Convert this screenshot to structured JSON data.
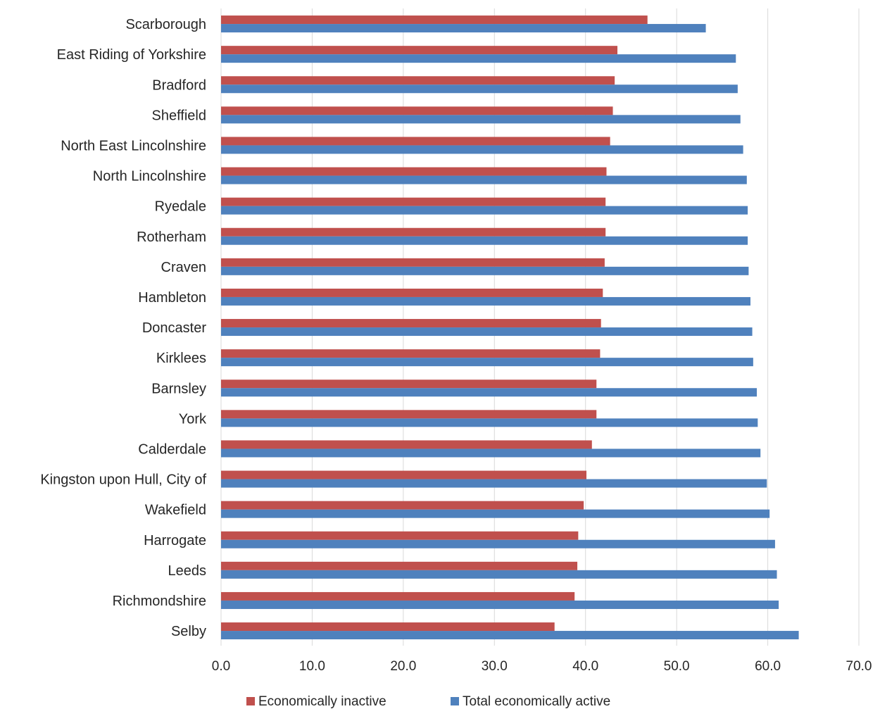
{
  "chart_data": {
    "type": "bar",
    "orientation": "horizontal",
    "categories": [
      "Scarborough",
      "East Riding of Yorkshire",
      "Bradford",
      "Sheffield",
      "North East Lincolnshire",
      "North Lincolnshire",
      "Ryedale",
      "Rotherham",
      "Craven",
      "Hambleton",
      "Doncaster",
      "Kirklees",
      "Barnsley",
      "York",
      "Calderdale",
      "Kingston upon Hull, City of",
      "Wakefield",
      "Harrogate",
      "Leeds",
      "Richmondshire",
      "Selby"
    ],
    "series": [
      {
        "name": "Economically inactive",
        "color": "#C0504D",
        "values": [
          46.8,
          43.5,
          43.2,
          43.0,
          42.7,
          42.3,
          42.2,
          42.2,
          42.1,
          41.9,
          41.7,
          41.6,
          41.2,
          41.2,
          40.7,
          40.1,
          39.8,
          39.2,
          39.1,
          38.8,
          36.6
        ]
      },
      {
        "name": "Total economically active",
        "color": "#4F81BD",
        "values": [
          53.2,
          56.5,
          56.7,
          57.0,
          57.3,
          57.7,
          57.8,
          57.8,
          57.9,
          58.1,
          58.3,
          58.4,
          58.8,
          58.9,
          59.2,
          59.9,
          60.2,
          60.8,
          61.0,
          61.2,
          63.4
        ]
      }
    ],
    "xlim": [
      0,
      70
    ],
    "xticks": [
      0,
      10,
      20,
      30,
      40,
      50,
      60,
      70
    ],
    "xtick_labels": [
      "0.0",
      "10.0",
      "20.0",
      "30.0",
      "40.0",
      "50.0",
      "60.0",
      "70.0"
    ],
    "grid": true,
    "legend_position": "bottom",
    "gridline_color": "#D9D9D9"
  }
}
